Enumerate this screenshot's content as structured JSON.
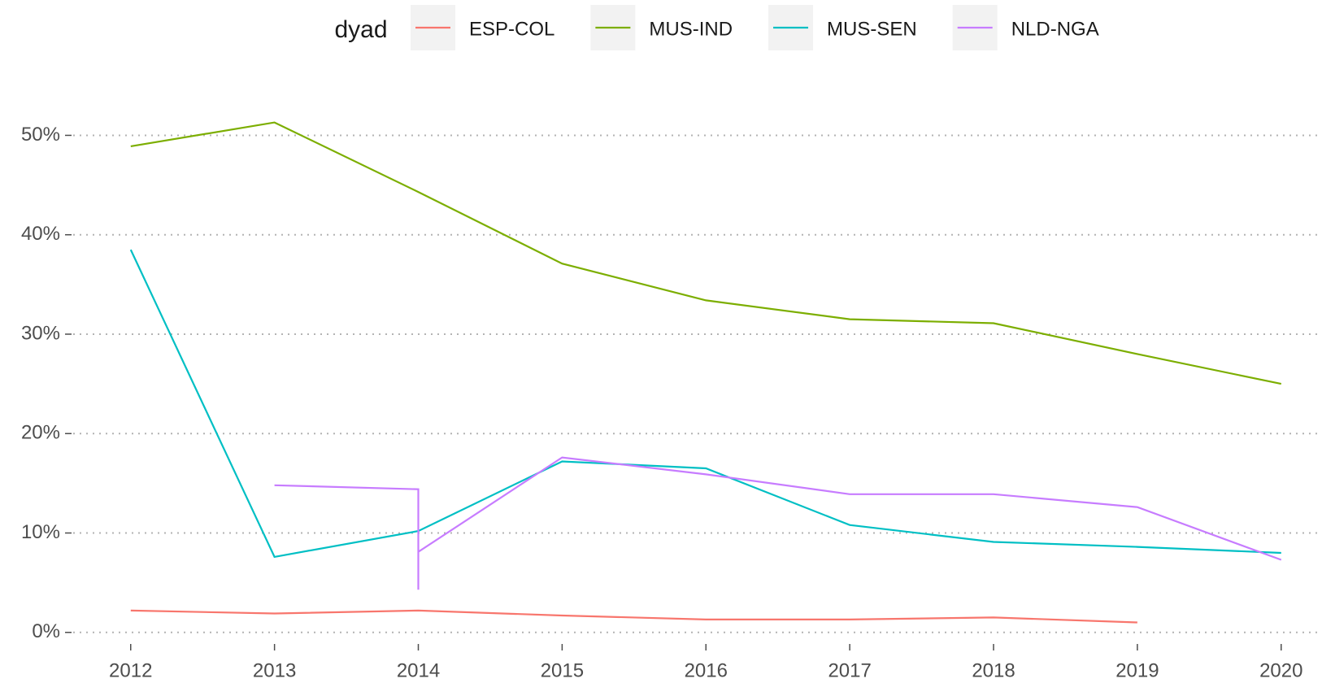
{
  "chart_data": {
    "type": "line",
    "legend_title": "dyad",
    "xlim": [
      2011.6,
      2020.25
    ],
    "xticks": [
      2012,
      2013,
      2014,
      2015,
      2016,
      2017,
      2018,
      2019,
      2020
    ],
    "ylim": [
      -1,
      53.8
    ],
    "yticks": [
      {
        "value": 0,
        "label": "0%"
      },
      {
        "value": 10,
        "label": "10%"
      },
      {
        "value": 20,
        "label": "20%"
      },
      {
        "value": 30,
        "label": "30%"
      },
      {
        "value": 40,
        "label": "40%"
      },
      {
        "value": 50,
        "label": "50%"
      }
    ],
    "grid": true,
    "legend": "top",
    "series": [
      {
        "name": "ESP-COL",
        "color": "#F8766D",
        "x": [
          2012,
          2013,
          2014,
          2015,
          2016,
          2017,
          2018,
          2019
        ],
        "values": [
          2.2,
          1.9,
          2.2,
          1.7,
          1.3,
          1.3,
          1.5,
          1.0
        ]
      },
      {
        "name": "MUS-IND",
        "color": "#7CAE00",
        "x": [
          2012,
          2013,
          2014,
          2015,
          2016,
          2017,
          2018,
          2019,
          2020
        ],
        "values": [
          48.9,
          51.3,
          44.3,
          37.1,
          33.4,
          31.5,
          31.1,
          28.0,
          25.0
        ]
      },
      {
        "name": "MUS-SEN",
        "color": "#00BFC4",
        "x": [
          2012,
          2013,
          2014,
          2015,
          2016,
          2017,
          2018,
          2019,
          2020
        ],
        "values": [
          38.5,
          7.6,
          10.2,
          17.2,
          16.5,
          10.8,
          9.1,
          8.6,
          8.0
        ]
      },
      {
        "name": "NLD-NGA",
        "color": "#C77CFF",
        "x": [
          2013,
          2014,
          2014,
          2014,
          2015,
          2016,
          2017,
          2018,
          2019,
          2020
        ],
        "values": [
          14.8,
          14.4,
          4.3,
          8.1,
          17.6,
          15.9,
          13.9,
          13.9,
          12.6,
          7.3
        ]
      }
    ]
  }
}
